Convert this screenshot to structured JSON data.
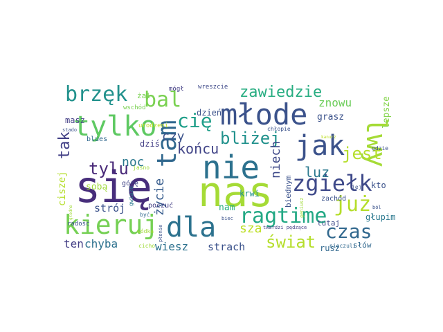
{
  "words": [
    {
      "text": "się",
      "color": "#472d7b",
      "weight": 1.0
    },
    {
      "text": "nas",
      "color": "#a5db36",
      "weight": 0.98
    },
    {
      "text": "nie",
      "color": "#2c718e",
      "weight": 0.9
    },
    {
      "text": "młode",
      "color": "#3b528b",
      "weight": 0.82
    },
    {
      "text": "tylko",
      "color": "#5ec962",
      "weight": 0.8
    },
    {
      "text": "kieruj",
      "color": "#75d054",
      "weight": 0.78
    },
    {
      "text": "dla",
      "color": "#2c728e",
      "weight": 0.78
    },
    {
      "text": "jak",
      "color": "#3b528b",
      "weight": 0.72
    },
    {
      "text": "lwy",
      "color": "#a5db36",
      "weight": 0.7
    },
    {
      "text": "tam",
      "color": "#31688e",
      "weight": 0.7
    },
    {
      "text": "zgiełk",
      "color": "#3e4989",
      "weight": 0.62
    },
    {
      "text": "już",
      "color": "#b5de2b",
      "weight": 0.6
    },
    {
      "text": "ragtime",
      "color": "#22a884",
      "weight": 0.6
    },
    {
      "text": "brzęk",
      "color": "#21918c",
      "weight": 0.56
    },
    {
      "text": "bal",
      "color": "#7ad151",
      "weight": 0.56
    },
    {
      "text": "czas",
      "color": "#31688e",
      "weight": 0.54
    },
    {
      "text": "cię",
      "color": "#1f9e89",
      "weight": 0.5
    },
    {
      "text": "zawiedzie",
      "color": "#27ad81",
      "weight": 0.42
    },
    {
      "text": "bliżej",
      "color": "#21918c",
      "weight": 0.44
    },
    {
      "text": "jest",
      "color": "#b5de2b",
      "weight": 0.4
    },
    {
      "text": "tak",
      "color": "#424086",
      "weight": 0.42
    },
    {
      "text": "tylu",
      "color": "#482878",
      "weight": 0.42
    },
    {
      "text": "świat",
      "color": "#b5de2b",
      "weight": 0.42
    },
    {
      "text": "końcu",
      "color": "#414487",
      "weight": 0.38
    },
    {
      "text": "luz",
      "color": "#2a788e",
      "weight": 0.38
    },
    {
      "text": "niech",
      "color": "#3e4989",
      "weight": 0.36
    },
    {
      "text": "czy",
      "color": "#3b528b",
      "weight": 0.34
    },
    {
      "text": "noc",
      "color": "#2a788e",
      "weight": 0.34
    },
    {
      "text": "życie",
      "color": "#365c8d",
      "weight": 0.32
    },
    {
      "text": "sza",
      "color": "#bddf26",
      "weight": 0.34
    },
    {
      "text": "znowu",
      "color": "#6ccd5a",
      "weight": 0.3
    },
    {
      "text": "chyba",
      "color": "#2c718e",
      "weight": 0.3
    },
    {
      "text": "ten",
      "color": "#433e85",
      "weight": 0.3
    },
    {
      "text": "wiesz",
      "color": "#2c718e",
      "weight": 0.28
    },
    {
      "text": "strach",
      "color": "#3b528b",
      "weight": 0.28
    },
    {
      "text": "strój",
      "color": "#3b528b",
      "weight": 0.28
    },
    {
      "text": "ciszej",
      "color": "#b5de2b",
      "weight": 0.26
    },
    {
      "text": "lepsze",
      "color": "#84d44b",
      "weight": 0.24
    },
    {
      "text": "grasz",
      "color": "#3b528b",
      "weight": 0.24
    },
    {
      "text": "dziś",
      "color": "#433e85",
      "weight": 0.22
    },
    {
      "text": "masz",
      "color": "#433e85",
      "weight": 0.22
    },
    {
      "text": "dzień",
      "color": "#3b528b",
      "weight": 0.22
    },
    {
      "text": "sobą",
      "color": "#9fda3a",
      "weight": 0.22
    },
    {
      "text": "nam",
      "color": "#27ad81",
      "weight": 0.22
    },
    {
      "text": "kto",
      "color": "#3b528b",
      "weight": 0.2
    },
    {
      "text": "krwi",
      "color": "#21918c",
      "weight": 0.2
    },
    {
      "text": "rusz",
      "color": "#31688e",
      "weight": 0.2
    },
    {
      "text": "głupim",
      "color": "#2a788e",
      "weight": 0.2
    },
    {
      "text": "tutaj",
      "color": "#3e4989",
      "weight": 0.18
    },
    {
      "text": "biednym",
      "color": "#3b528b",
      "weight": 0.2
    },
    {
      "text": "zachód",
      "color": "#3b528b",
      "weight": 0.16
    },
    {
      "text": "słów",
      "color": "#31688e",
      "weight": 0.18
    },
    {
      "text": "żal",
      "color": "#7ad151",
      "weight": 0.18
    },
    {
      "text": "mógł",
      "color": "#433e85",
      "weight": 0.16
    },
    {
      "text": "wreszcie",
      "color": "#3e4989",
      "weight": 0.16
    },
    {
      "text": "wschód",
      "color": "#7ad151",
      "weight": 0.16
    },
    {
      "text": "blues",
      "color": "#31688e",
      "weight": 0.14
    },
    {
      "text": "urodzeni",
      "color": "#bddf26",
      "weight": 0.14
    },
    {
      "text": "chłopie",
      "color": "#3b528b",
      "weight": 0.14
    },
    {
      "text": "gdzie",
      "color": "#3b528b",
      "weight": 0.14
    },
    {
      "text": "górę",
      "color": "#414487",
      "weight": 0.16
    },
    {
      "text": "poczuć",
      "color": "#433e85",
      "weight": 0.16
    },
    {
      "text": "radość",
      "color": "#3b528b",
      "weight": 0.14
    },
    {
      "text": "jasno",
      "color": "#a0da39",
      "weight": 0.14
    },
    {
      "text": "gwiazd",
      "color": "#2a788e",
      "weight": 0.12
    },
    {
      "text": "wódka",
      "color": "#a0da39",
      "weight": 0.12
    },
    {
      "text": "cicho",
      "color": "#a0da39",
      "weight": 0.12
    },
    {
      "text": "być",
      "color": "#31688e",
      "weight": 0.12
    },
    {
      "text": "geniusz",
      "color": "#a0da39",
      "weight": 0.12
    },
    {
      "text": "płonie",
      "color": "#3b528b",
      "weight": 0.12
    },
    {
      "text": "twardzi pędzące",
      "color": "#433e85",
      "weight": 0.12
    },
    {
      "text": "nieczuli",
      "color": "#31688e",
      "weight": 0.12
    },
    {
      "text": "ból",
      "color": "#3b528b",
      "weight": 0.12
    },
    {
      "text": "biec",
      "color": "#3b528b",
      "weight": 0.12
    },
    {
      "text": "stado",
      "color": "#3b528b",
      "weight": 0.12
    },
    {
      "text": "głodne",
      "color": "#a0da39",
      "weight": 0.1
    },
    {
      "text": "jej",
      "color": "#3b528b",
      "weight": 0.12
    },
    {
      "text": "kanurz",
      "color": "#bddf26",
      "weight": 0.1
    }
  ]
}
